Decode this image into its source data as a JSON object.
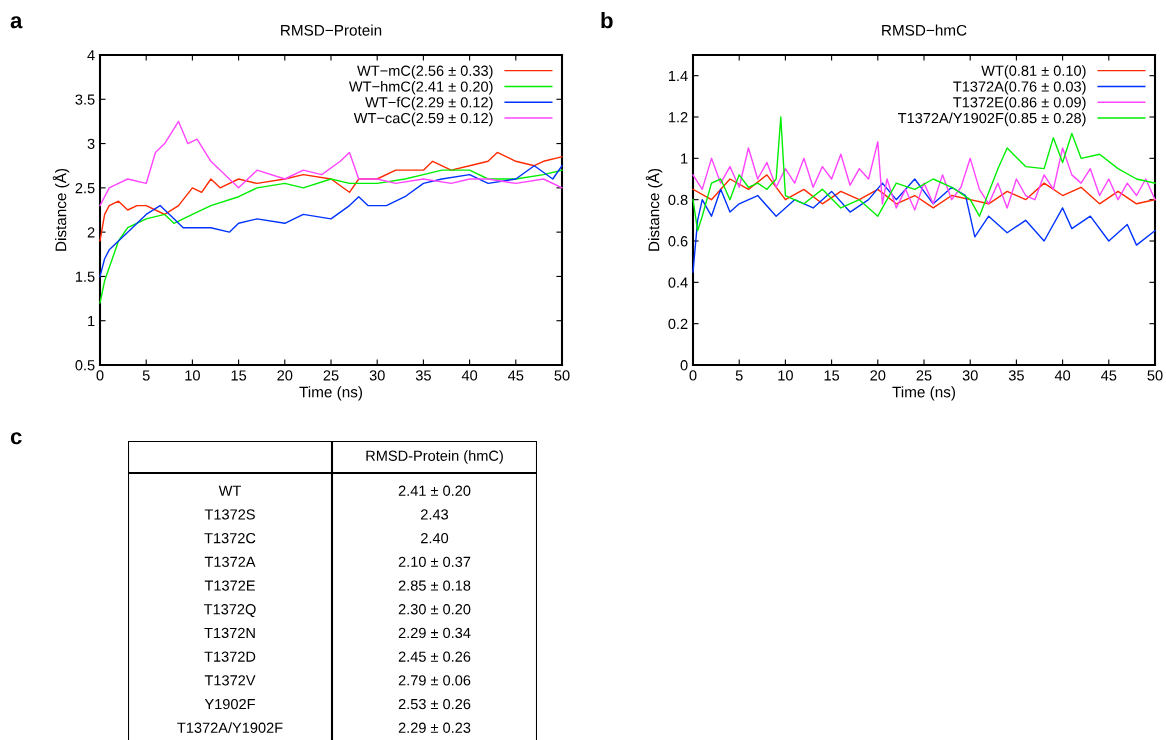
{
  "chart_data": [
    {
      "type": "line",
      "title": "RMSD−Protein",
      "xlabel": "Time (ns)",
      "ylabel": "Distance (Å)",
      "annotations": [
        "a"
      ],
      "xlim": [
        0,
        50
      ],
      "ylim": [
        0.5,
        4
      ],
      "xticks": [
        0,
        5,
        10,
        15,
        20,
        25,
        30,
        35,
        40,
        45,
        50
      ],
      "yticks": [
        0.5,
        1,
        1.5,
        2,
        2.5,
        3,
        3.5,
        4
      ],
      "legend": "top right",
      "grid": false,
      "series": [
        {
          "name": "WT−mC(2.56 ± 0.33)",
          "color": "#ff2a00",
          "x": [
            0,
            0.5,
            1,
            2,
            3,
            4,
            5,
            6,
            7,
            8.5,
            10,
            11,
            12,
            13,
            15,
            17,
            20,
            22,
            25,
            27,
            28,
            30,
            32,
            35,
            36,
            38,
            40,
            42,
            43,
            45,
            47,
            48,
            50
          ],
          "values": [
            1.9,
            2.2,
            2.3,
            2.35,
            2.25,
            2.3,
            2.3,
            2.25,
            2.2,
            2.3,
            2.5,
            2.45,
            2.6,
            2.5,
            2.6,
            2.55,
            2.6,
            2.65,
            2.6,
            2.45,
            2.6,
            2.6,
            2.7,
            2.7,
            2.8,
            2.7,
            2.75,
            2.8,
            2.9,
            2.8,
            2.75,
            2.8,
            2.85
          ]
        },
        {
          "name": "WT−hmC(2.41 ± 0.20)",
          "color": "#00ee00",
          "x": [
            0,
            0.5,
            1,
            2,
            3,
            5,
            7,
            8,
            10,
            12,
            15,
            17,
            20,
            22,
            25,
            27,
            30,
            33,
            35,
            37,
            40,
            42,
            45,
            48,
            50
          ],
          "values": [
            1.2,
            1.45,
            1.6,
            1.9,
            2.05,
            2.15,
            2.2,
            2.1,
            2.2,
            2.3,
            2.4,
            2.5,
            2.55,
            2.5,
            2.6,
            2.55,
            2.55,
            2.6,
            2.65,
            2.7,
            2.7,
            2.6,
            2.6,
            2.65,
            2.7
          ]
        },
        {
          "name": "WT−fC(2.29 ± 0.12)",
          "color": "#0033ff",
          "x": [
            0,
            0.5,
            1,
            2,
            3,
            5,
            6.5,
            8,
            9,
            12,
            14,
            15,
            17,
            20,
            22,
            25,
            27,
            28,
            29,
            31,
            33,
            35,
            37,
            40,
            42,
            45,
            47,
            49,
            50
          ],
          "values": [
            1.5,
            1.7,
            1.8,
            1.9,
            2.0,
            2.2,
            2.3,
            2.15,
            2.05,
            2.05,
            2.0,
            2.1,
            2.15,
            2.1,
            2.2,
            2.15,
            2.3,
            2.4,
            2.3,
            2.3,
            2.4,
            2.55,
            2.6,
            2.65,
            2.55,
            2.6,
            2.75,
            2.6,
            2.75
          ]
        },
        {
          "name": "WT−caC(2.59 ± 0.12)",
          "color": "#ff44ff",
          "x": [
            0,
            1,
            2,
            3,
            5,
            6,
            7,
            8.5,
            9.5,
            10.5,
            12,
            14,
            15,
            17,
            20,
            22,
            24,
            26,
            27,
            28,
            30,
            32,
            35,
            38,
            40,
            42,
            45,
            48,
            50
          ],
          "values": [
            2.3,
            2.5,
            2.55,
            2.6,
            2.55,
            2.9,
            3.0,
            3.25,
            3.0,
            3.05,
            2.8,
            2.6,
            2.5,
            2.7,
            2.6,
            2.7,
            2.65,
            2.8,
            2.9,
            2.6,
            2.6,
            2.55,
            2.6,
            2.55,
            2.6,
            2.6,
            2.55,
            2.6,
            2.5
          ]
        }
      ]
    },
    {
      "type": "line",
      "title": "RMSD−hmC",
      "xlabel": "Time (ns)",
      "ylabel": "Distance (Å)",
      "annotations": [
        "b"
      ],
      "xlim": [
        0,
        50
      ],
      "ylim": [
        0,
        1.5
      ],
      "xticks": [
        0,
        5,
        10,
        15,
        20,
        25,
        30,
        35,
        40,
        45,
        50
      ],
      "yticks": [
        0,
        0.2,
        0.4,
        0.6,
        0.8,
        1,
        1.2,
        1.4
      ],
      "legend": "top right",
      "grid": false,
      "series": [
        {
          "name": "WT(0.81 ± 0.10)",
          "color": "#ff2a00",
          "x": [
            0,
            2,
            4,
            6,
            8,
            10,
            12,
            14,
            16,
            18,
            20,
            22,
            24,
            26,
            28,
            30,
            32,
            34,
            36,
            38,
            40,
            42,
            44,
            46,
            48,
            50
          ],
          "values": [
            0.85,
            0.8,
            0.9,
            0.85,
            0.92,
            0.8,
            0.85,
            0.78,
            0.84,
            0.8,
            0.85,
            0.78,
            0.82,
            0.76,
            0.82,
            0.8,
            0.78,
            0.84,
            0.8,
            0.88,
            0.82,
            0.86,
            0.78,
            0.84,
            0.78,
            0.8
          ]
        },
        {
          "name": "T1372A(0.76 ± 0.03)",
          "color": "#0033ff",
          "x": [
            0,
            0.5,
            1,
            2,
            3,
            4,
            5,
            7,
            9,
            11,
            13,
            15,
            17,
            19,
            20.5,
            22,
            24,
            26,
            28,
            29.5,
            30.5,
            32,
            34,
            36,
            38,
            40,
            41,
            43,
            45,
            47,
            48,
            50
          ],
          "values": [
            0.45,
            0.7,
            0.8,
            0.72,
            0.85,
            0.74,
            0.78,
            0.82,
            0.72,
            0.8,
            0.76,
            0.84,
            0.74,
            0.8,
            0.88,
            0.8,
            0.9,
            0.78,
            0.86,
            0.82,
            0.62,
            0.72,
            0.64,
            0.7,
            0.6,
            0.76,
            0.66,
            0.72,
            0.6,
            0.68,
            0.58,
            0.65
          ]
        },
        {
          "name": "T1372E(0.86 ± 0.09)",
          "color": "#ff44ff",
          "x": [
            0,
            1,
            2,
            3,
            4,
            5,
            6,
            7,
            8,
            9,
            10,
            11,
            12,
            13,
            14,
            15,
            16,
            17,
            18,
            19,
            20,
            20.5,
            21,
            22,
            23,
            24,
            25,
            26,
            27,
            28,
            29,
            30,
            31,
            32,
            33,
            34,
            35,
            36,
            37,
            38,
            39,
            40,
            41,
            42,
            43,
            44,
            45,
            46,
            47,
            48,
            49,
            50
          ],
          "values": [
            0.92,
            0.85,
            1.0,
            0.88,
            0.96,
            0.86,
            1.05,
            0.9,
            0.98,
            0.86,
            0.95,
            0.88,
            1.0,
            0.86,
            0.96,
            0.9,
            1.02,
            0.87,
            0.95,
            0.9,
            1.08,
            0.78,
            0.9,
            0.76,
            0.85,
            0.75,
            0.88,
            0.78,
            0.92,
            0.8,
            0.86,
            1.0,
            0.85,
            0.78,
            0.88,
            0.76,
            0.9,
            0.82,
            0.8,
            0.92,
            0.85,
            1.05,
            0.92,
            0.88,
            0.95,
            0.82,
            0.9,
            0.8,
            0.88,
            0.82,
            0.9,
            0.8
          ]
        },
        {
          "name": "T1372A/Y1902F(0.85 ± 0.28)",
          "color": "#00ee00",
          "x": [
            0,
            0.5,
            1,
            2,
            3,
            4,
            5,
            6,
            7,
            8,
            9,
            9.5,
            10,
            12,
            14,
            16,
            18,
            20,
            22,
            24,
            26,
            28,
            30,
            31,
            33,
            34,
            36,
            38,
            39,
            40,
            41,
            42,
            44,
            46,
            48,
            50
          ],
          "values": [
            0.8,
            0.65,
            0.72,
            0.88,
            0.9,
            0.8,
            0.92,
            0.86,
            0.88,
            0.85,
            0.9,
            1.2,
            0.82,
            0.78,
            0.85,
            0.76,
            0.8,
            0.72,
            0.88,
            0.85,
            0.9,
            0.86,
            0.8,
            0.72,
            0.95,
            1.05,
            0.96,
            0.95,
            1.1,
            0.98,
            1.12,
            1.0,
            1.02,
            0.95,
            0.9,
            0.88
          ]
        }
      ]
    },
    {
      "type": "other",
      "annotations": [
        "c"
      ],
      "categories": [
        "RMSD-Protein (hmC)"
      ],
      "y_categories": [
        "WT",
        "T1372S",
        "T1372C",
        "T1372A",
        "T1372E",
        "T1372Q",
        "T1372N",
        "T1372D",
        "T1372V",
        "Y1902F",
        "T1372A/Y1902F"
      ],
      "cell_labels": [
        [
          "2.41 ± 0.20"
        ],
        [
          "2.43"
        ],
        [
          "2.40"
        ],
        [
          "2.10 ± 0.37"
        ],
        [
          "2.85 ± 0.18"
        ],
        [
          "2.30 ± 0.20"
        ],
        [
          "2.29 ± 0.34"
        ],
        [
          "2.45 ± 0.26"
        ],
        [
          "2.79 ± 0.06"
        ],
        [
          "2.53 ± 0.26"
        ],
        [
          "2.29 ± 0.23"
        ]
      ]
    }
  ]
}
